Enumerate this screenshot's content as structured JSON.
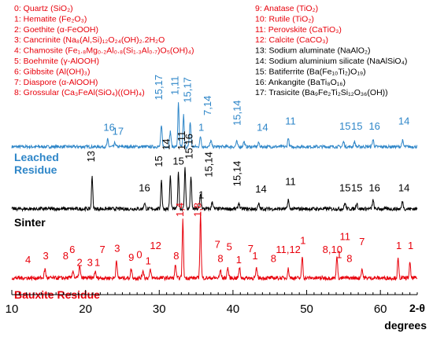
{
  "chart_data": {
    "type": "line",
    "xlabel_parts": [
      "2-θ",
      "degrees"
    ],
    "xlim": [
      10,
      65
    ],
    "xticks": [
      10,
      20,
      30,
      40,
      50,
      60
    ],
    "legend": [
      {
        "text": "0: Quartz (SiO₂)",
        "color": "#e8000b"
      },
      {
        "text": "1: Hematite (Fe₂O₃)",
        "color": "#e8000b"
      },
      {
        "text": "2: Goethite (α-FeOOH)",
        "color": "#e8000b"
      },
      {
        "text": "3: Cancrinite (Na₈(Al,Si)₁₂O₂₄(OH)₂.2H₂O",
        "color": "#e8000b"
      },
      {
        "text": "4: Chamosite (Fe₁.₈Mg₀.₂Al₀.₈(Si₁.₃Al₀.₇)O₅(OH)₄)",
        "color": "#e8000b"
      },
      {
        "text": "5: Boehmite (γ-AlOOH)",
        "color": "#e8000b"
      },
      {
        "text": "6: Gibbsite (Al(OH)₃)",
        "color": "#e8000b"
      },
      {
        "text": "7: Diaspore (α-AlOOH)",
        "color": "#e8000b"
      },
      {
        "text": "8: Grossular (Ca₃FeAl(SiO₄)((OH)₄)",
        "color": "#e8000b"
      },
      {
        "text": "9: Anatase (TiO₂)",
        "color": "#e8000b"
      },
      {
        "text": "10: Rutile (TiO₂)",
        "color": "#e8000b"
      },
      {
        "text": "11: Perovskite (CaTiO₃)",
        "color": "#e8000b"
      },
      {
        "text": "12: Calcite (CaCO₃)",
        "color": "#e8000b"
      },
      {
        "text": "13: Sodium aluminate (NaAlO₂)",
        "color": "#000000"
      },
      {
        "text": "14: Sodium aluminium silicate (NaAlSiO₄)",
        "color": "#000000"
      },
      {
        "text": "15: Batiferrite (Ba(Fe₁₀Ti₂)O₁₉)",
        "color": "#000000"
      },
      {
        "text": "16: Ankangite (BaTi₈O₁₆)",
        "color": "#000000"
      },
      {
        "text": "17: Trasicite (Ba₉Fe₂Ti₂Si₁₂O₃₆(OH))",
        "color": "#000000"
      }
    ],
    "series": [
      {
        "name": "Leached Residue",
        "color": "#2e86c8",
        "baseline": 0.05,
        "peaks": [
          {
            "x": 23.0,
            "h": 0.14,
            "w": 0.12
          },
          {
            "x": 24.0,
            "h": 0.08,
            "w": 0.12
          },
          {
            "x": 30.3,
            "h": 0.4,
            "w": 0.14
          },
          {
            "x": 31.5,
            "h": 0.3,
            "w": 0.14
          },
          {
            "x": 32.6,
            "h": 0.85,
            "w": 0.12
          },
          {
            "x": 33.3,
            "h": 0.62,
            "w": 0.12
          },
          {
            "x": 34.2,
            "h": 0.48,
            "w": 0.14
          },
          {
            "x": 35.6,
            "h": 0.2,
            "w": 0.14
          },
          {
            "x": 37.0,
            "h": 0.12,
            "w": 0.14
          },
          {
            "x": 40.5,
            "h": 0.1,
            "w": 0.14
          },
          {
            "x": 41.5,
            "h": 0.1,
            "w": 0.14
          },
          {
            "x": 43.5,
            "h": 0.08,
            "w": 0.14
          },
          {
            "x": 47.5,
            "h": 0.18,
            "w": 0.12
          },
          {
            "x": 55.0,
            "h": 0.1,
            "w": 0.14
          },
          {
            "x": 56.5,
            "h": 0.1,
            "w": 0.14
          },
          {
            "x": 59.0,
            "h": 0.14,
            "w": 0.14
          },
          {
            "x": 63.0,
            "h": 0.12,
            "w": 0.14
          }
        ],
        "labels": [
          {
            "x": 23.2,
            "text": "16",
            "level": 0.3
          },
          {
            "x": 24.4,
            "text": "17",
            "level": 0.22
          },
          {
            "x": 30.4,
            "text": "15,17",
            "level": 0.9,
            "vertical": true
          },
          {
            "x": 32.6,
            "text": "1,11",
            "level": 1.0,
            "vertical": true
          },
          {
            "x": 34.3,
            "text": "15,17",
            "level": 0.85,
            "vertical": true
          },
          {
            "x": 35.7,
            "text": "1",
            "level": 0.3
          },
          {
            "x": 37.0,
            "text": "7,14",
            "level": 0.6,
            "vertical": true
          },
          {
            "x": 41.0,
            "text": "15,14",
            "level": 0.4,
            "vertical": true
          },
          {
            "x": 44.0,
            "text": "14",
            "level": 0.3
          },
          {
            "x": 47.8,
            "text": "11",
            "level": 0.42
          },
          {
            "x": 55.2,
            "text": "15",
            "level": 0.32
          },
          {
            "x": 56.8,
            "text": "15",
            "level": 0.32
          },
          {
            "x": 59.2,
            "text": "16",
            "level": 0.32
          },
          {
            "x": 63.2,
            "text": "14",
            "level": 0.42
          }
        ]
      },
      {
        "name": "Sinter",
        "color": "#000000",
        "baseline": 0.08,
        "peaks": [
          {
            "x": 20.9,
            "h": 0.55,
            "w": 0.12
          },
          {
            "x": 28.0,
            "h": 0.1,
            "w": 0.14
          },
          {
            "x": 30.3,
            "h": 0.48,
            "w": 0.12
          },
          {
            "x": 31.5,
            "h": 0.55,
            "w": 0.12
          },
          {
            "x": 32.6,
            "h": 0.62,
            "w": 0.12
          },
          {
            "x": 33.5,
            "h": 0.7,
            "w": 0.12
          },
          {
            "x": 34.3,
            "h": 0.55,
            "w": 0.12
          },
          {
            "x": 35.6,
            "h": 0.25,
            "w": 0.14
          },
          {
            "x": 37.2,
            "h": 0.12,
            "w": 0.14
          },
          {
            "x": 40.8,
            "h": 0.1,
            "w": 0.14
          },
          {
            "x": 43.5,
            "h": 0.08,
            "w": 0.14
          },
          {
            "x": 47.5,
            "h": 0.16,
            "w": 0.12
          },
          {
            "x": 55.2,
            "h": 0.1,
            "w": 0.14
          },
          {
            "x": 56.8,
            "h": 0.1,
            "w": 0.14
          },
          {
            "x": 59.0,
            "h": 0.14,
            "w": 0.14
          },
          {
            "x": 63.0,
            "h": 0.12,
            "w": 0.14
          }
        ],
        "labels": [
          {
            "x": 21.2,
            "text": "13",
            "level": 0.8,
            "vertical": true
          },
          {
            "x": 28.0,
            "text": "16",
            "level": 0.32
          },
          {
            "x": 30.4,
            "text": "15",
            "level": 0.72,
            "vertical": true
          },
          {
            "x": 31.4,
            "text": "14",
            "level": 1.0,
            "vertical": true
          },
          {
            "x": 32.6,
            "text": "15",
            "level": 0.76
          },
          {
            "x": 33.5,
            "text": "1,11",
            "level": 1.0,
            "vertical": true
          },
          {
            "x": 34.5,
            "text": "15,16",
            "level": 0.85,
            "vertical": true
          },
          {
            "x": 35.7,
            "text": "1",
            "level": 0.2
          },
          {
            "x": 37.2,
            "text": "15,14",
            "level": 0.55,
            "vertical": true
          },
          {
            "x": 41.0,
            "text": "15,14",
            "level": 0.4,
            "vertical": true
          },
          {
            "x": 43.8,
            "text": "14",
            "level": 0.3
          },
          {
            "x": 47.8,
            "text": "11",
            "level": 0.42
          },
          {
            "x": 55.2,
            "text": "15",
            "level": 0.32
          },
          {
            "x": 56.8,
            "text": "15",
            "level": 0.32
          },
          {
            "x": 59.2,
            "text": "16",
            "level": 0.32
          },
          {
            "x": 63.2,
            "text": "14",
            "level": 0.32
          }
        ]
      },
      {
        "name": "Bauxite Residue",
        "color": "#e8000b",
        "baseline": 0.1,
        "peaks": [
          {
            "x": 14.5,
            "h": 0.14,
            "w": 0.14
          },
          {
            "x": 18.3,
            "h": 0.12,
            "w": 0.14
          },
          {
            "x": 19.2,
            "h": 0.18,
            "w": 0.14
          },
          {
            "x": 21.3,
            "h": 0.1,
            "w": 0.14
          },
          {
            "x": 24.2,
            "h": 0.3,
            "w": 0.12
          },
          {
            "x": 26.2,
            "h": 0.14,
            "w": 0.14
          },
          {
            "x": 27.8,
            "h": 0.12,
            "w": 0.14
          },
          {
            "x": 28.8,
            "h": 0.12,
            "w": 0.14
          },
          {
            "x": 32.2,
            "h": 0.22,
            "w": 0.12
          },
          {
            "x": 33.2,
            "h": 0.9,
            "w": 0.12
          },
          {
            "x": 35.6,
            "h": 1.0,
            "w": 0.12
          },
          {
            "x": 38.3,
            "h": 0.12,
            "w": 0.14
          },
          {
            "x": 39.3,
            "h": 0.16,
            "w": 0.14
          },
          {
            "x": 40.9,
            "h": 0.15,
            "w": 0.14
          },
          {
            "x": 43.2,
            "h": 0.14,
            "w": 0.14
          },
          {
            "x": 47.5,
            "h": 0.14,
            "w": 0.14
          },
          {
            "x": 49.4,
            "h": 0.34,
            "w": 0.12
          },
          {
            "x": 54.1,
            "h": 0.36,
            "w": 0.12
          },
          {
            "x": 57.5,
            "h": 0.14,
            "w": 0.14
          },
          {
            "x": 62.4,
            "h": 0.3,
            "w": 0.12
          },
          {
            "x": 64.0,
            "h": 0.24,
            "w": 0.12
          }
        ],
        "labels": [
          {
            "x": 12.2,
            "text": "4",
            "level": 0.28
          },
          {
            "x": 14.6,
            "text": "3",
            "level": 0.34
          },
          {
            "x": 17.3,
            "text": "8",
            "level": 0.34
          },
          {
            "x": 18.2,
            "text": "6",
            "level": 0.44
          },
          {
            "x": 19.2,
            "text": "2",
            "level": 0.24
          },
          {
            "x": 20.6,
            "text": "3",
            "level": 0.24
          },
          {
            "x": 21.6,
            "text": "1",
            "level": 0.24
          },
          {
            "x": 22.3,
            "text": "7",
            "level": 0.44
          },
          {
            "x": 24.3,
            "text": "3",
            "level": 0.46
          },
          {
            "x": 26.2,
            "text": "9",
            "level": 0.32
          },
          {
            "x": 27.3,
            "text": "0",
            "level": 0.36
          },
          {
            "x": 28.5,
            "text": "1",
            "level": 0.26
          },
          {
            "x": 29.5,
            "text": "12",
            "level": 0.5
          },
          {
            "x": 32.3,
            "text": "8",
            "level": 0.34
          },
          {
            "x": 33.3,
            "text": "1,4",
            "level": 1.0,
            "vertical": true
          },
          {
            "x": 35.7,
            "text": "1,8",
            "level": 1.0,
            "vertical": true
          },
          {
            "x": 37.9,
            "text": "7",
            "level": 0.52
          },
          {
            "x": 38.3,
            "text": "8",
            "level": 0.3
          },
          {
            "x": 39.5,
            "text": "5",
            "level": 0.48
          },
          {
            "x": 40.8,
            "text": "1",
            "level": 0.28
          },
          {
            "x": 42.4,
            "text": "7",
            "level": 0.45
          },
          {
            "x": 43.0,
            "text": "1",
            "level": 0.34
          },
          {
            "x": 45.5,
            "text": "8",
            "level": 0.3
          },
          {
            "x": 47.5,
            "text": "11,12",
            "level": 0.44
          },
          {
            "x": 49.5,
            "text": "1",
            "level": 0.58
          },
          {
            "x": 53.5,
            "text": "8,10",
            "level": 0.44
          },
          {
            "x": 55.2,
            "text": "11",
            "level": 0.64
          },
          {
            "x": 54.4,
            "text": "1",
            "level": 0.36
          },
          {
            "x": 55.8,
            "text": "8",
            "level": 0.3
          },
          {
            "x": 57.5,
            "text": "7",
            "level": 0.56
          },
          {
            "x": 62.5,
            "text": "1",
            "level": 0.5
          },
          {
            "x": 64.1,
            "text": "1",
            "level": 0.5
          }
        ]
      }
    ]
  }
}
